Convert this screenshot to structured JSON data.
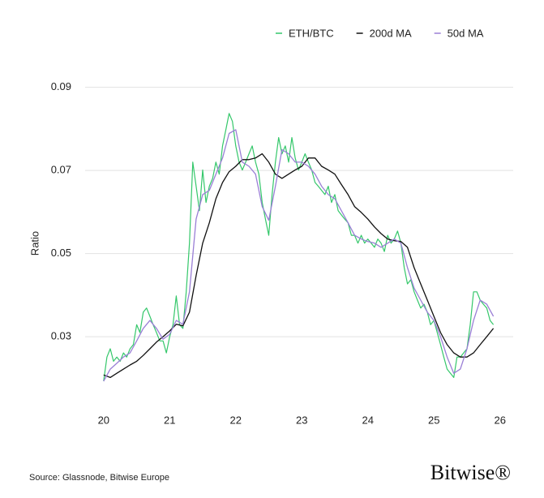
{
  "chart_data": {
    "type": "line",
    "y_label": "Ratio",
    "source": "Source: Glassnode, Bitwise Europe",
    "brand": "Bitwise®",
    "xlim": [
      19.72,
      26.2
    ],
    "xticks": [
      20,
      21,
      22,
      23,
      24,
      25,
      26
    ],
    "ylim": [
      0.015,
      0.095
    ],
    "yticks": [
      0.03,
      0.05,
      0.07,
      0.09
    ],
    "grid": true,
    "legend": "top-right",
    "series": [
      {
        "name": "ETH/BTC",
        "color": "#34c76a",
        "x": [
          20.0,
          20.05,
          20.1,
          20.15,
          20.2,
          20.25,
          20.3,
          20.35,
          20.4,
          20.45,
          20.5,
          20.55,
          20.6,
          20.65,
          20.7,
          20.75,
          20.8,
          20.85,
          20.9,
          20.95,
          21.0,
          21.05,
          21.1,
          21.15,
          21.2,
          21.25,
          21.3,
          21.35,
          21.4,
          21.45,
          21.5,
          21.55,
          21.6,
          21.65,
          21.7,
          21.75,
          21.8,
          21.85,
          21.9,
          21.95,
          22.0,
          22.05,
          22.1,
          22.15,
          22.2,
          22.25,
          22.3,
          22.35,
          22.4,
          22.45,
          22.5,
          22.55,
          22.6,
          22.65,
          22.7,
          22.75,
          22.8,
          22.85,
          22.9,
          22.95,
          23.0,
          23.05,
          23.1,
          23.15,
          23.2,
          23.25,
          23.3,
          23.35,
          23.4,
          23.45,
          23.5,
          23.55,
          23.6,
          23.65,
          23.7,
          23.75,
          23.8,
          23.85,
          23.9,
          23.95,
          24.0,
          24.05,
          24.1,
          24.15,
          24.2,
          24.25,
          24.3,
          24.35,
          24.4,
          24.45,
          24.5,
          24.55,
          24.6,
          24.65,
          24.7,
          24.75,
          24.8,
          24.85,
          24.9,
          24.95,
          25.0,
          25.05,
          25.1,
          25.15,
          25.2,
          25.25,
          25.3,
          25.35,
          25.4,
          25.45,
          25.5,
          25.55,
          25.6,
          25.65,
          25.7,
          25.75,
          25.8,
          25.85,
          25.9
        ],
        "values": [
          0.0193,
          0.0251,
          0.0271,
          0.0241,
          0.0251,
          0.0241,
          0.0261,
          0.0251,
          0.0271,
          0.0281,
          0.0329,
          0.031,
          0.0359,
          0.0369,
          0.0349,
          0.0329,
          0.031,
          0.029,
          0.029,
          0.0261,
          0.03,
          0.0329,
          0.0398,
          0.0329,
          0.032,
          0.0408,
          0.0525,
          0.072,
          0.0662,
          0.0603,
          0.0701,
          0.0623,
          0.0662,
          0.0681,
          0.072,
          0.0691,
          0.0759,
          0.0798,
          0.0837,
          0.0818,
          0.0759,
          0.072,
          0.0701,
          0.072,
          0.074,
          0.0759,
          0.072,
          0.0691,
          0.0623,
          0.0583,
          0.0544,
          0.0642,
          0.072,
          0.0779,
          0.074,
          0.0759,
          0.072,
          0.0779,
          0.073,
          0.0701,
          0.072,
          0.074,
          0.072,
          0.0701,
          0.0671,
          0.0662,
          0.0652,
          0.0642,
          0.0662,
          0.0623,
          0.0642,
          0.0603,
          0.0593,
          0.0583,
          0.0574,
          0.0544,
          0.0544,
          0.0525,
          0.0544,
          0.0525,
          0.0535,
          0.0525,
          0.0515,
          0.0535,
          0.0525,
          0.0505,
          0.0544,
          0.0525,
          0.0535,
          0.0554,
          0.0525,
          0.0466,
          0.0427,
          0.0437,
          0.0408,
          0.0388,
          0.0369,
          0.0378,
          0.0359,
          0.0329,
          0.0339,
          0.031,
          0.0281,
          0.0251,
          0.0222,
          0.0212,
          0.0202,
          0.0251,
          0.0251,
          0.0261,
          0.0271,
          0.0329,
          0.0408,
          0.0408,
          0.0388,
          0.0378,
          0.0369,
          0.0339,
          0.0329
        ]
      },
      {
        "name": "200d MA",
        "color": "#111111",
        "x": [
          20.0,
          20.1,
          20.2,
          20.3,
          20.4,
          20.5,
          20.6,
          20.7,
          20.8,
          20.9,
          21.0,
          21.1,
          21.2,
          21.3,
          21.4,
          21.5,
          21.6,
          21.7,
          21.8,
          21.9,
          22.0,
          22.1,
          22.2,
          22.3,
          22.4,
          22.5,
          22.6,
          22.7,
          22.8,
          22.9,
          23.0,
          23.1,
          23.2,
          23.3,
          23.4,
          23.5,
          23.6,
          23.7,
          23.8,
          23.9,
          24.0,
          24.1,
          24.2,
          24.3,
          24.4,
          24.5,
          24.6,
          24.7,
          24.8,
          24.9,
          25.0,
          25.1,
          25.2,
          25.3,
          25.4,
          25.5,
          25.6,
          25.7,
          25.8,
          25.9
        ],
        "values": [
          0.0208,
          0.0202,
          0.0212,
          0.0222,
          0.0232,
          0.0241,
          0.0255,
          0.0271,
          0.0287,
          0.03,
          0.0314,
          0.033,
          0.0326,
          0.0359,
          0.0447,
          0.0525,
          0.0574,
          0.0632,
          0.0671,
          0.0697,
          0.071,
          0.0726,
          0.0726,
          0.073,
          0.074,
          0.072,
          0.0691,
          0.0681,
          0.0691,
          0.0701,
          0.071,
          0.073,
          0.073,
          0.071,
          0.0701,
          0.0691,
          0.0666,
          0.0642,
          0.0613,
          0.0599,
          0.0583,
          0.0564,
          0.0548,
          0.0535,
          0.0531,
          0.0529,
          0.0515,
          0.0466,
          0.0427,
          0.0388,
          0.0349,
          0.031,
          0.0281,
          0.0261,
          0.0251,
          0.0251,
          0.0261,
          0.0281,
          0.03,
          0.032
        ]
      },
      {
        "name": "50d MA",
        "color": "#9a7fd6",
        "x": [
          20.0,
          20.1,
          20.2,
          20.3,
          20.4,
          20.5,
          20.6,
          20.7,
          20.8,
          20.9,
          21.0,
          21.1,
          21.2,
          21.3,
          21.4,
          21.5,
          21.6,
          21.7,
          21.8,
          21.9,
          22.0,
          22.1,
          22.2,
          22.3,
          22.4,
          22.5,
          22.6,
          22.7,
          22.8,
          22.9,
          23.0,
          23.1,
          23.2,
          23.3,
          23.4,
          23.5,
          23.6,
          23.7,
          23.8,
          23.9,
          24.0,
          24.1,
          24.2,
          24.3,
          24.4,
          24.5,
          24.6,
          24.7,
          24.8,
          24.9,
          25.0,
          25.1,
          25.2,
          25.3,
          25.4,
          25.5,
          25.6,
          25.7,
          25.8,
          25.9
        ],
        "values": [
          0.0193,
          0.0222,
          0.0236,
          0.0251,
          0.0261,
          0.029,
          0.032,
          0.0339,
          0.032,
          0.0294,
          0.0306,
          0.0339,
          0.033,
          0.0408,
          0.0583,
          0.0642,
          0.0652,
          0.0691,
          0.073,
          0.0789,
          0.0798,
          0.072,
          0.071,
          0.0691,
          0.0613,
          0.058,
          0.0662,
          0.075,
          0.074,
          0.072,
          0.072,
          0.071,
          0.0691,
          0.0662,
          0.0642,
          0.0632,
          0.0603,
          0.0574,
          0.0544,
          0.0535,
          0.0529,
          0.0525,
          0.0515,
          0.0525,
          0.0535,
          0.0525,
          0.0466,
          0.0417,
          0.0388,
          0.0359,
          0.0339,
          0.03,
          0.0251,
          0.0212,
          0.0222,
          0.0271,
          0.0339,
          0.0388,
          0.0378,
          0.0349
        ]
      }
    ]
  }
}
